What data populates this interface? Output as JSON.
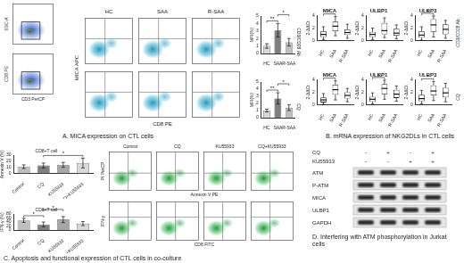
{
  "panels": {
    "A": {
      "caption": "A. MICA expression on CTL cells",
      "gating": {
        "y_labels": [
          "SSC-A",
          "CD8 PE"
        ],
        "x_label": "CD3 PerCP"
      },
      "flow": {
        "columns": [
          "HC",
          "SAA",
          "R-SAA"
        ],
        "y_label": "MICA APC",
        "x_label": "CD8 PE"
      }
    },
    "B": {
      "caption": "B. mRNA expression of NKG2DLs in CTL cells",
      "rows": [
        "CD3/CD28 Ab",
        "CQ"
      ]
    },
    "C": {
      "caption": "C. Apoptosis and functional expression of CTL cells in co-culture",
      "flow": {
        "columns": [
          "Control",
          "CQ",
          "KU55933",
          "CQ+KU55933"
        ],
        "rows": [
          {
            "y_label": "PI PerCP",
            "x_label": "Annexin V PE"
          },
          {
            "y_label": "IFN-γ",
            "x_label": "CD8 FITC"
          }
        ]
      }
    },
    "D": {
      "caption": "D. Interfering with ATM phosphorylation in Jurkat cells",
      "treatments": [
        {
          "name": "CQ",
          "signs": [
            "-",
            "+",
            "-",
            "+"
          ]
        },
        {
          "name": "KU55933",
          "signs": [
            "-",
            "-",
            "+",
            "+"
          ]
        }
      ],
      "bands": [
        "ATM",
        "P-ATM",
        "MICA",
        "ULBP1",
        "GAPDH"
      ]
    }
  },
  "chart_data": [
    {
      "type": "bar",
      "title": "CD3/CD28 Ab",
      "y_label": "MFI(%)",
      "categories": [
        "HC",
        "SAA",
        "R-SAA"
      ],
      "values": [
        1.0,
        3.1,
        1.5
      ],
      "errors": [
        0.3,
        0.9,
        0.5
      ],
      "colors": [
        "#d9d9d9",
        "#7f7f7f",
        "#bfbfbf"
      ],
      "ylim": [
        0,
        5
      ],
      "yticks": [
        0,
        1,
        2,
        3,
        4,
        5
      ],
      "brackets": [
        {
          "from": "HC",
          "to": "SAA",
          "label": "**"
        },
        {
          "from": "SAA",
          "to": "R-SAA",
          "label": "*"
        }
      ]
    },
    {
      "type": "bar",
      "title": "CQ",
      "y_label": "MFI(%)",
      "categories": [
        "HC",
        "SAA",
        "R-SAA"
      ],
      "values": [
        1.0,
        2.7,
        1.4
      ],
      "errors": [
        0.2,
        0.8,
        0.4
      ],
      "colors": [
        "#d9d9d9",
        "#7f7f7f",
        "#bfbfbf"
      ],
      "ylim": [
        0,
        5
      ],
      "yticks": [
        0,
        1,
        2,
        3,
        4,
        5
      ],
      "brackets": [
        {
          "from": "HC",
          "to": "SAA",
          "label": "**"
        },
        {
          "from": "SAA",
          "to": "R-SAA",
          "label": "*"
        }
      ]
    },
    {
      "type": "box",
      "title": "MICA",
      "y_label": "2-ΔΔCt",
      "categories": [
        "HC",
        "SAA",
        "R-SAA"
      ],
      "boxes": [
        {
          "min": 0.2,
          "q1": 0.6,
          "median": 1.0,
          "q3": 1.5,
          "max": 2.2
        },
        {
          "min": 0.8,
          "q1": 1.5,
          "median": 2.3,
          "q3": 3.0,
          "max": 3.8
        },
        {
          "min": 0.4,
          "q1": 0.9,
          "median": 1.3,
          "q3": 1.8,
          "max": 2.6
        }
      ],
      "ylim": [
        0,
        4
      ],
      "yticks": [
        0,
        2,
        4
      ],
      "brackets": [
        {
          "from": "HC",
          "to": "SAA",
          "label": "*"
        }
      ]
    },
    {
      "type": "box",
      "title": "ULBP1",
      "y_label": "2-ΔΔCt",
      "categories": [
        "HC",
        "SAA",
        "R-SAA"
      ],
      "boxes": [
        {
          "min": 0.2,
          "q1": 0.6,
          "median": 1.0,
          "q3": 1.4,
          "max": 2.0
        },
        {
          "min": 0.5,
          "q1": 1.0,
          "median": 1.6,
          "q3": 2.8,
          "max": 3.6
        },
        {
          "min": 0.3,
          "q1": 0.8,
          "median": 1.2,
          "q3": 1.9,
          "max": 2.5
        }
      ],
      "ylim": [
        0,
        4
      ],
      "yticks": [
        0,
        2,
        4
      ]
    },
    {
      "type": "box",
      "title": "ULBP3",
      "y_label": "2-ΔΔCt",
      "categories": [
        "HC",
        "SAA",
        "R-SAA"
      ],
      "boxes": [
        {
          "min": 0.1,
          "q1": 0.5,
          "median": 0.9,
          "q3": 1.5,
          "max": 2.2
        },
        {
          "min": 0.6,
          "q1": 1.4,
          "median": 2.5,
          "q3": 3.4,
          "max": 3.9
        },
        {
          "min": 0.4,
          "q1": 1.0,
          "median": 1.8,
          "q3": 2.6,
          "max": 3.2
        }
      ],
      "ylim": [
        0,
        4
      ],
      "yticks": [
        0,
        2,
        4
      ],
      "brackets": [
        {
          "from": "HC",
          "to": "SAA",
          "label": "*"
        }
      ]
    },
    {
      "type": "box",
      "title": "MICA",
      "y_label": "2-ΔΔCt",
      "categories": [
        "HC",
        "SAA",
        "R-SAA"
      ],
      "boxes": [
        {
          "min": 0.1,
          "q1": 0.4,
          "median": 0.8,
          "q3": 1.2,
          "max": 1.8
        },
        {
          "min": 0.8,
          "q1": 1.6,
          "median": 2.4,
          "q3": 3.2,
          "max": 3.8
        },
        {
          "min": 0.5,
          "q1": 1.0,
          "median": 1.5,
          "q3": 2.0,
          "max": 2.6
        }
      ],
      "ylim": [
        0,
        4
      ],
      "yticks": [
        0,
        2,
        4
      ],
      "brackets": [
        {
          "from": "HC",
          "to": "SAA",
          "label": "*"
        }
      ]
    },
    {
      "type": "box",
      "title": "ULBP1",
      "y_label": "2-ΔΔCt",
      "categories": [
        "HC",
        "SAA",
        "R-SAA"
      ],
      "boxes": [
        {
          "min": 0.2,
          "q1": 0.5,
          "median": 0.9,
          "q3": 1.3,
          "max": 1.9
        },
        {
          "min": 0.9,
          "q1": 1.7,
          "median": 2.6,
          "q3": 3.3,
          "max": 3.9
        },
        {
          "min": 0.6,
          "q1": 1.1,
          "median": 1.7,
          "q3": 2.4,
          "max": 3.0
        }
      ],
      "ylim": [
        0,
        4
      ],
      "yticks": [
        0,
        2,
        4
      ],
      "brackets": [
        {
          "from": "HC",
          "to": "SAA",
          "label": "*"
        }
      ]
    },
    {
      "type": "box",
      "title": "ULBP3",
      "y_label": "2-ΔΔCt",
      "categories": [
        "HC",
        "SAA",
        "R-SAA"
      ],
      "boxes": [
        {
          "min": 0.2,
          "q1": 0.6,
          "median": 1.0,
          "q3": 1.6,
          "max": 2.3
        },
        {
          "min": 0.7,
          "q1": 1.5,
          "median": 2.2,
          "q3": 3.1,
          "max": 3.7
        },
        {
          "min": 0.5,
          "q1": 1.2,
          "median": 1.9,
          "q3": 2.7,
          "max": 3.4
        }
      ],
      "ylim": [
        0,
        4
      ],
      "yticks": [
        0,
        2,
        4
      ],
      "brackets": [
        {
          "from": "HC",
          "to": "SAA",
          "label": "*"
        }
      ]
    },
    {
      "type": "bar",
      "title": "CD8+T cell",
      "y_label": "Annexin V (%)",
      "categories": [
        "Control",
        "CQ",
        "KU55933",
        "CQ+KU55933"
      ],
      "values": [
        11,
        13,
        14,
        17
      ],
      "errors": [
        3,
        4,
        4,
        8
      ],
      "colors": [
        "#bfbfbf",
        "#7f7f7f",
        "#a6a6a6",
        "#d9d9d9"
      ],
      "ylim": [
        0,
        30
      ],
      "yticks": [
        0,
        10,
        20,
        30
      ],
      "brackets": [
        {
          "from": "CQ",
          "to": "CQ+KU55933",
          "label": "*"
        }
      ]
    },
    {
      "type": "bar",
      "title": "CD8+T cell",
      "y_label": "IFN-γ (%)",
      "categories": [
        "Control",
        "CQ",
        "KU55933",
        "CQ+KU55933"
      ],
      "values": [
        48,
        28,
        52,
        32
      ],
      "errors": [
        10,
        12,
        15,
        10
      ],
      "colors": [
        "#bfbfbf",
        "#7f7f7f",
        "#a6a6a6",
        "#d9d9d9"
      ],
      "ylim": [
        0,
        80
      ],
      "yticks": [
        0,
        20,
        40,
        60,
        80
      ],
      "brackets": [
        {
          "from": "Control",
          "to": "CQ",
          "label": "*"
        },
        {
          "from": "CQ",
          "to": "KU55933",
          "label": "*"
        }
      ]
    }
  ]
}
